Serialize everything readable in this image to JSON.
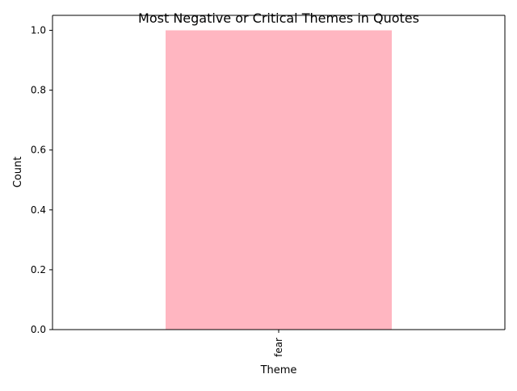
{
  "chart_data": {
    "type": "bar",
    "title": "Most Negative or Critical Themes in Quotes",
    "xlabel": "Theme",
    "ylabel": "Count",
    "categories": [
      "fear"
    ],
    "values": [
      1
    ],
    "ylim": [
      0,
      1.05
    ],
    "yticks": [
      "0.0",
      "0.2",
      "0.4",
      "0.6",
      "0.8",
      "1.0"
    ],
    "bar_color": "#ffb6c1",
    "grid": false,
    "legend": "none"
  }
}
